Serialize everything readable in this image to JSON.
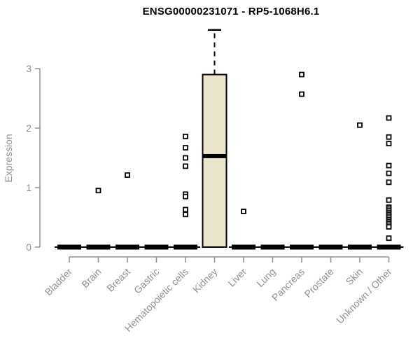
{
  "chart_data": {
    "type": "boxplot",
    "title": "ENSG00000231071 - RP5-1068H6.1",
    "ylabel": "Expression",
    "yticks": [
      0,
      1,
      2,
      3
    ],
    "ylim": [
      0,
      3.75
    ],
    "grid": false,
    "legend": "none",
    "categories": [
      "Bladder",
      "Brain",
      "Breast",
      "Gastric",
      "Hematopoietic cells",
      "Kidney",
      "Liver",
      "Lung",
      "Pancreas",
      "Prostate",
      "Skin",
      "Unknown / Other"
    ],
    "boxes": [
      {
        "category": "Bladder",
        "q1": 0,
        "median": 0,
        "q3": 0,
        "whisker_low": 0,
        "whisker_high": 0,
        "outliers": []
      },
      {
        "category": "Brain",
        "q1": 0,
        "median": 0,
        "q3": 0,
        "whisker_low": 0,
        "whisker_high": 0,
        "outliers": [
          0.95
        ]
      },
      {
        "category": "Breast",
        "q1": 0,
        "median": 0,
        "q3": 0,
        "whisker_low": 0,
        "whisker_high": 0,
        "outliers": [
          1.21
        ]
      },
      {
        "category": "Gastric",
        "q1": 0,
        "median": 0,
        "q3": 0,
        "whisker_low": 0,
        "whisker_high": 0,
        "outliers": []
      },
      {
        "category": "Hematopoietic cells",
        "q1": 0,
        "median": 0,
        "q3": 0,
        "whisker_low": 0,
        "whisker_high": 0,
        "outliers": [
          1.86,
          1.67,
          1.5,
          1.36,
          0.89,
          0.85,
          0.63,
          0.55
        ]
      },
      {
        "category": "Kidney",
        "q1": 0,
        "median": 1.53,
        "q3": 2.9,
        "whisker_low": 0,
        "whisker_high": 3.65,
        "outliers": []
      },
      {
        "category": "Liver",
        "q1": 0,
        "median": 0,
        "q3": 0,
        "whisker_low": 0,
        "whisker_high": 0,
        "outliers": [
          0.6
        ]
      },
      {
        "category": "Lung",
        "q1": 0,
        "median": 0,
        "q3": 0,
        "whisker_low": 0,
        "whisker_high": 0,
        "outliers": []
      },
      {
        "category": "Pancreas",
        "q1": 0,
        "median": 0,
        "q3": 0,
        "whisker_low": 0,
        "whisker_high": 0,
        "outliers": [
          2.9,
          2.57
        ]
      },
      {
        "category": "Prostate",
        "q1": 0,
        "median": 0,
        "q3": 0,
        "whisker_low": 0,
        "whisker_high": 0,
        "outliers": []
      },
      {
        "category": "Skin",
        "q1": 0,
        "median": 0,
        "q3": 0,
        "whisker_low": 0,
        "whisker_high": 0,
        "outliers": [
          2.05
        ]
      },
      {
        "category": "Unknown / Other",
        "q1": 0,
        "median": 0,
        "q3": 0,
        "whisker_low": 0,
        "whisker_high": 0,
        "outliers": [
          2.17,
          1.85,
          1.74,
          1.37,
          1.24,
          1.09,
          0.79,
          0.67,
          0.64,
          0.61,
          0.58,
          0.55,
          0.52,
          0.49,
          0.46,
          0.43,
          0.4,
          0.37,
          0.34,
          0.15
        ]
      }
    ],
    "colors": {
      "box_fill": "#EBE5C9",
      "box_stroke": "#000000",
      "median": "#000000",
      "marker": "#000000",
      "axis": "#919191",
      "title": "#000000",
      "background": "#FFFFFF"
    },
    "marker_style": "open-square"
  }
}
